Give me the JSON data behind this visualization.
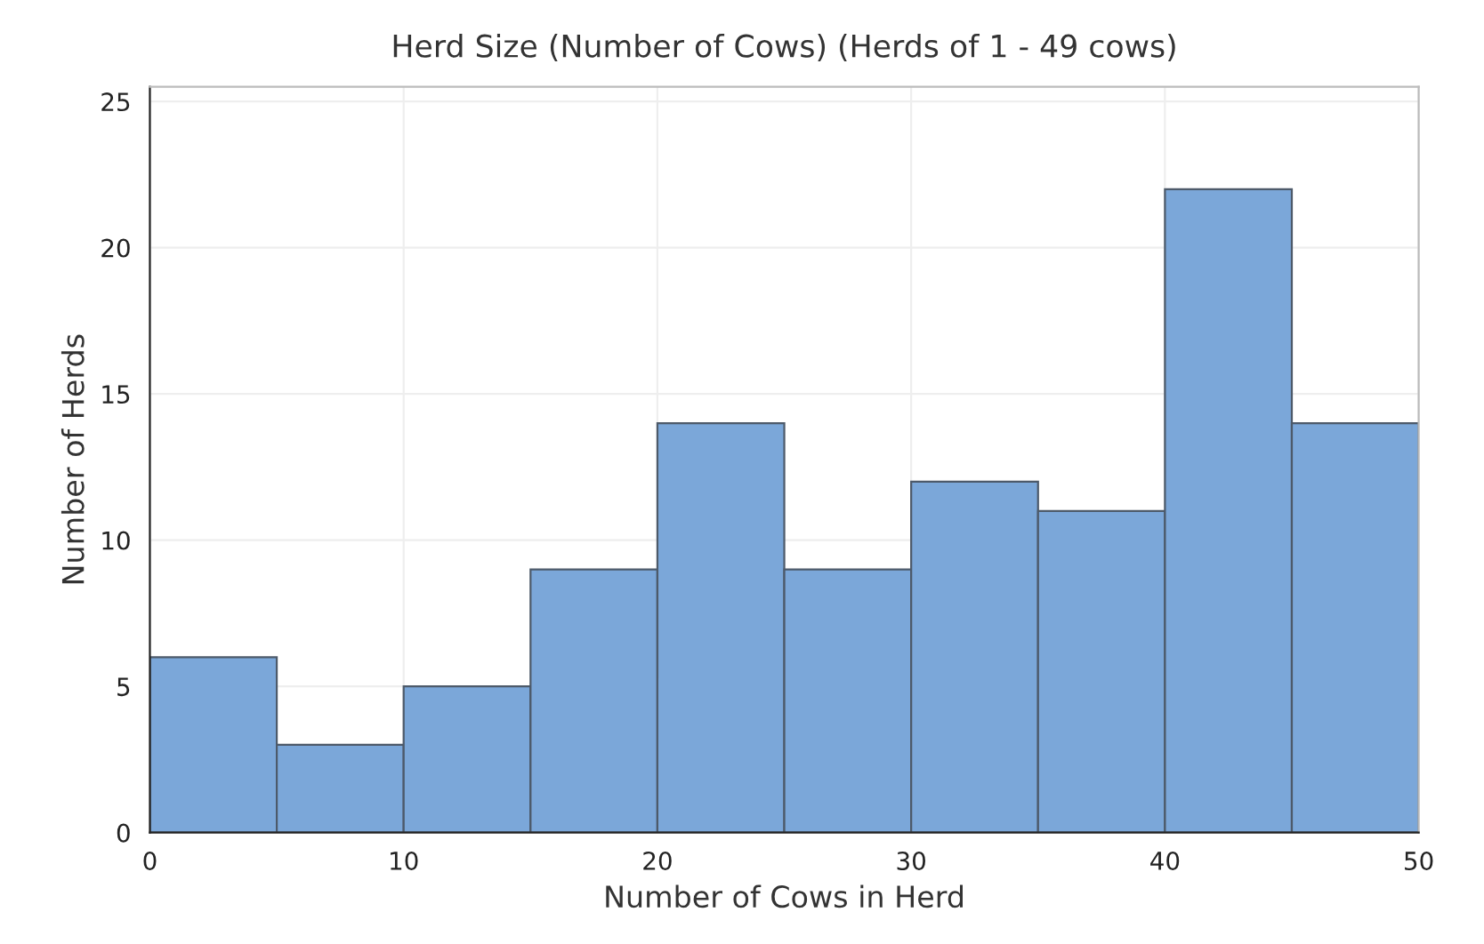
{
  "chart_data": {
    "type": "histogram",
    "title": "Herd Size (Number of Cows) (Herds of 1 - 49 cows)",
    "xlabel": "Number of Cows in Herd",
    "ylabel": "Number of Herds",
    "bins": [
      0,
      5,
      10,
      15,
      20,
      25,
      30,
      35,
      40,
      45,
      50
    ],
    "values": [
      6,
      3,
      5,
      9,
      14,
      9,
      12,
      11,
      22,
      14
    ],
    "color": "#7ba7d9",
    "xlim": [
      0,
      50
    ],
    "xticks": [
      0,
      10,
      20,
      30,
      40,
      50
    ],
    "ylim": [
      0,
      25.5
    ],
    "yticks": [
      0,
      5,
      10,
      15,
      20,
      25
    ],
    "grid": true
  }
}
